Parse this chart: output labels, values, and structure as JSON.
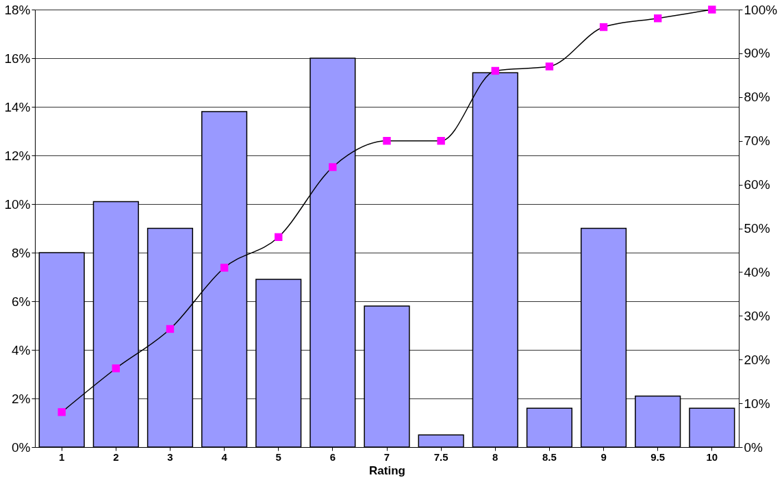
{
  "chart_data": {
    "type": "bar",
    "xlabel": "Rating",
    "categories": [
      "1",
      "2",
      "3",
      "4",
      "5",
      "6",
      "7",
      "7.5",
      "8",
      "8.5",
      "9",
      "9.5",
      "10"
    ],
    "series": [
      {
        "color": "#9999ff",
        "values": [
          8.0,
          10.1,
          9.0,
          13.8,
          6.9,
          16.0,
          5.8,
          0.5,
          15.4,
          1.6,
          9.0,
          2.1,
          1.6
        ]
      },
      {
        "type": "line",
        "axis": "y2",
        "color": "#ff00ff",
        "marker": "square",
        "values": [
          8,
          18,
          27,
          41,
          48,
          64,
          70,
          70,
          86,
          87,
          96,
          98,
          100
        ]
      }
    ],
    "ylim": [
      0,
      18
    ],
    "yticks": [
      {
        "value": 0,
        "label": "0%"
      },
      {
        "value": 2,
        "label": "2%"
      },
      {
        "value": 4,
        "label": "4%"
      },
      {
        "value": 6,
        "label": "6%"
      },
      {
        "value": 8,
        "label": "8%"
      },
      {
        "value": 10,
        "label": "10%"
      },
      {
        "value": 12,
        "label": "12%"
      },
      {
        "value": 14,
        "label": "14%"
      },
      {
        "value": 16,
        "label": "16%"
      },
      {
        "value": 18,
        "label": "18%"
      }
    ],
    "y2lim": [
      0,
      100
    ],
    "y2ticks": [
      {
        "value": 0,
        "label": "0%"
      },
      {
        "value": 10,
        "label": "10%"
      },
      {
        "value": 20,
        "label": "20%"
      },
      {
        "value": 30,
        "label": "30%"
      },
      {
        "value": 40,
        "label": "40%"
      },
      {
        "value": 50,
        "label": "50%"
      },
      {
        "value": 60,
        "label": "60%"
      },
      {
        "value": 70,
        "label": "70%"
      },
      {
        "value": 80,
        "label": "80%"
      },
      {
        "value": 90,
        "label": "90%"
      },
      {
        "value": 100,
        "label": "100%"
      }
    ],
    "grid": "y"
  }
}
